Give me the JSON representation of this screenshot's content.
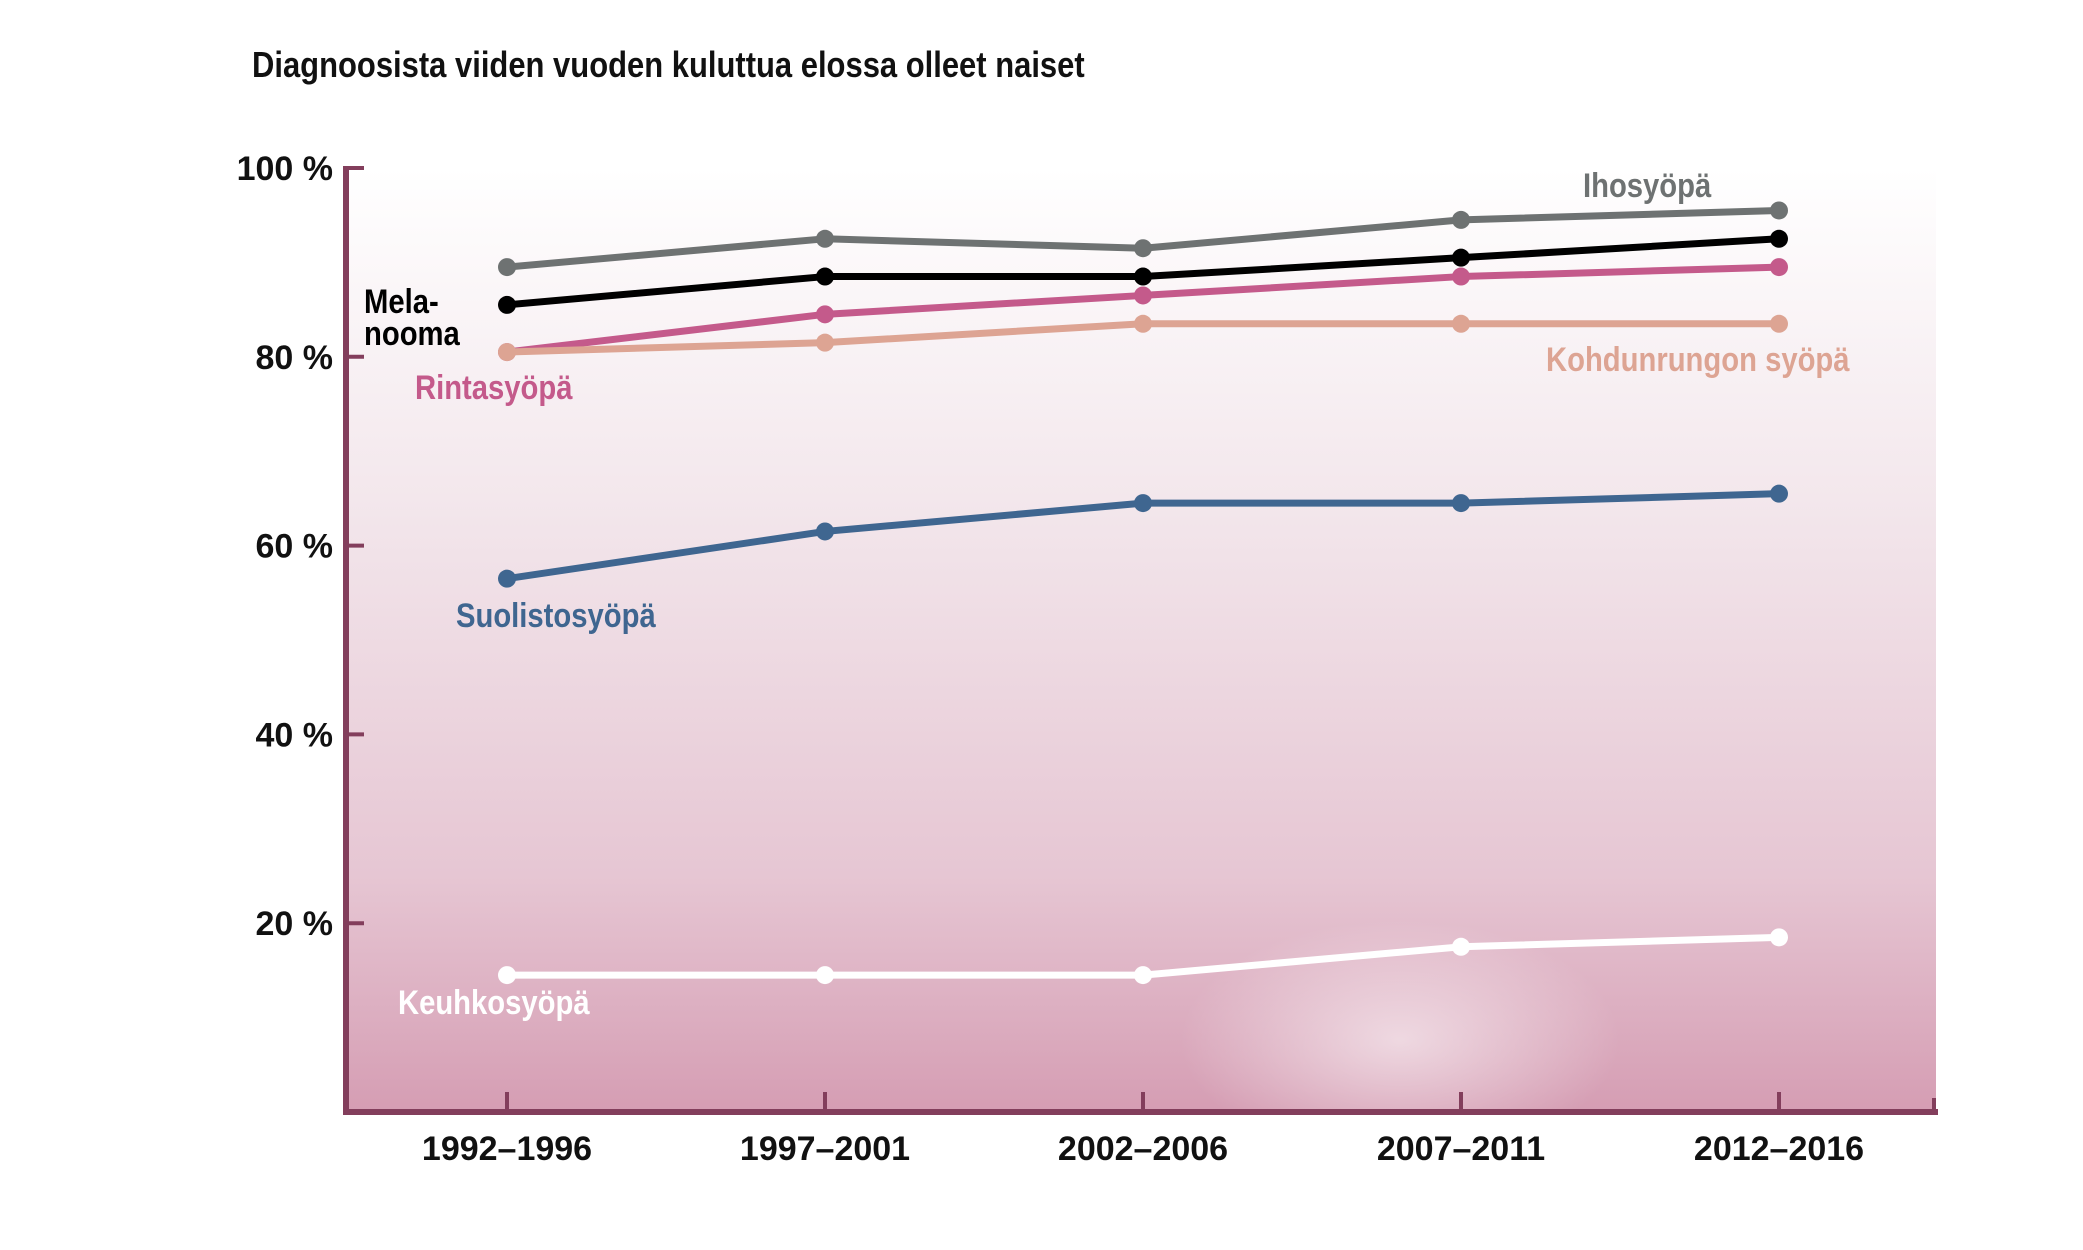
{
  "title": "Diagnoosista viiden vuoden kuluttua elossa olleet naiset",
  "chart_data": {
    "type": "line",
    "title": "Diagnoosista viiden vuoden kuluttua elossa olleet naiset",
    "xlabel": "",
    "ylabel": "",
    "categories": [
      "1992–1996",
      "1997–2001",
      "2002–2006",
      "2007–2011",
      "2012–2016"
    ],
    "ylim": [
      0,
      100
    ],
    "yticks": [
      20,
      40,
      60,
      80,
      100
    ],
    "ytick_labels": [
      "20 %",
      "40 %",
      "60 %",
      "80 %",
      "100 %"
    ],
    "grid": false,
    "series": [
      {
        "name": "Ihosyöpä",
        "color": "#6e7272",
        "values": [
          89.5,
          92.5,
          91.5,
          94.5,
          95.5
        ]
      },
      {
        "name": "Melanooma",
        "label_lines": [
          "Mela-",
          "nooma"
        ],
        "color": "#000000",
        "values": [
          85.5,
          88.5,
          88.5,
          90.5,
          92.5
        ]
      },
      {
        "name": "Rintasyöpä",
        "color": "#c45a8b",
        "values": [
          80.5,
          84.5,
          86.5,
          88.5,
          89.5
        ]
      },
      {
        "name": "Kohdunrungon syöpä",
        "color": "#dda493",
        "values": [
          80.5,
          81.5,
          83.5,
          83.5,
          83.5
        ]
      },
      {
        "name": "Suolistosyöpä",
        "color": "#3f6690",
        "values": [
          56.5,
          61.5,
          64.5,
          64.5,
          65.5
        ]
      },
      {
        "name": "Keuhkosyöpä",
        "color": "#ffffff",
        "values": [
          14.5,
          14.5,
          14.5,
          17.5,
          18.5
        ]
      }
    ],
    "colors": {
      "axis": "#833e5c",
      "background_top": "#ffffff",
      "background_bottom": "#d9a3b8"
    }
  }
}
